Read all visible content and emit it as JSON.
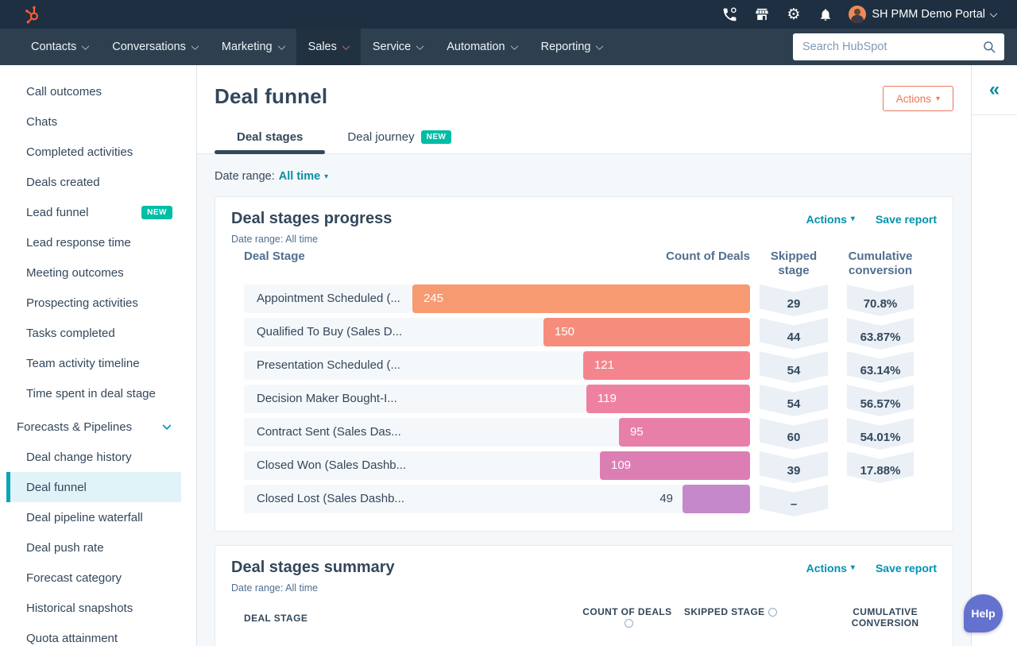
{
  "topbar": {
    "portal": "SH PMM Demo Portal",
    "search_placeholder": "Search HubSpot",
    "nav": [
      {
        "label": "Contacts"
      },
      {
        "label": "Conversations"
      },
      {
        "label": "Marketing"
      },
      {
        "label": "Sales",
        "active": true
      },
      {
        "label": "Service"
      },
      {
        "label": "Automation"
      },
      {
        "label": "Reporting"
      }
    ],
    "icons": [
      "phone-icon",
      "marketplace-icon",
      "settings-icon",
      "notifications-icon"
    ]
  },
  "sidebar": {
    "items": [
      {
        "label": "Call outcomes"
      },
      {
        "label": "Chats"
      },
      {
        "label": "Completed activities"
      },
      {
        "label": "Deals created"
      },
      {
        "label": "Lead funnel",
        "badge": "NEW"
      },
      {
        "label": "Lead response time"
      },
      {
        "label": "Meeting outcomes"
      },
      {
        "label": "Prospecting activities"
      },
      {
        "label": "Tasks completed"
      },
      {
        "label": "Team activity timeline"
      },
      {
        "label": "Time spent in deal stage"
      },
      {
        "label": "Forecasts & Pipelines",
        "section": true
      },
      {
        "label": "Deal change history"
      },
      {
        "label": "Deal funnel",
        "selected": true
      },
      {
        "label": "Deal pipeline waterfall"
      },
      {
        "label": "Deal push rate"
      },
      {
        "label": "Forecast category"
      },
      {
        "label": "Historical snapshots"
      },
      {
        "label": "Quota attainment"
      }
    ]
  },
  "page": {
    "title": "Deal funnel",
    "actions_button": "Actions",
    "tabs": [
      {
        "label": "Deal stages",
        "active": true
      },
      {
        "label": "Deal journey",
        "badge": "NEW"
      }
    ],
    "date_range_label": "Date range:",
    "date_range_value": "All time"
  },
  "progress_card": {
    "title": "Deal stages progress",
    "actions_link": "Actions",
    "save_link": "Save report",
    "date_range": "Date range: All time",
    "columns": {
      "stage": "Deal Stage",
      "count": "Count of Deals",
      "skipped": "Skipped stage",
      "cumulative": "Cumulative conversion"
    }
  },
  "summary_card": {
    "title": "Deal stages summary",
    "actions_link": "Actions",
    "save_link": "Save report",
    "date_range": "Date range: All time",
    "columns": [
      "DEAL STAGE",
      "COUNT OF DEALS",
      "SKIPPED STAGE",
      "CUMULATIVE CONVERSION"
    ]
  },
  "chart_data": {
    "type": "bar",
    "title": "Deal stages progress",
    "orientation": "horizontal-funnel",
    "categories": [
      "Appointment Scheduled (...",
      "Qualified To Buy (Sales D...",
      "Presentation Scheduled (...",
      "Decision Maker Bought-I...",
      "Contract Sent (Sales Das...",
      "Closed Won (Sales Dashb...",
      "Closed Lost (Sales Dashb..."
    ],
    "series": [
      {
        "name": "Count of Deals",
        "values": [
          245,
          150,
          121,
          119,
          95,
          109,
          49
        ]
      },
      {
        "name": "Skipped stage",
        "values": [
          "29",
          "44",
          "54",
          "54",
          "60",
          "39",
          "–"
        ]
      },
      {
        "name": "Cumulative conversion",
        "values": [
          "70.8%",
          "63.87%",
          "63.14%",
          "56.57%",
          "54.01%",
          "17.88%",
          ""
        ]
      }
    ],
    "xmax": 245,
    "bar_colors": [
      "#f89a71",
      "#f68d7c",
      "#f4858e",
      "#ee81a0",
      "#e87fa9",
      "#dc7eb4",
      "#c488cb"
    ],
    "value_label_inside": [
      true,
      true,
      true,
      true,
      true,
      true,
      false
    ]
  },
  "help": {
    "label": "Help"
  },
  "colors": {
    "topbar_bg": "#1e2f41",
    "nav_bg": "#2e4050",
    "nav_active_bg": "#223140",
    "accent_orange": "#ff5c35",
    "coral_button": "#e8765a",
    "teal_link": "#0091ae",
    "teal_badge": "#00bda5",
    "selected_item_bg": "#e0f3f8",
    "selected_item_bar": "#0fa2b8",
    "dark_text": "#33475b",
    "muted_text": "#516f90",
    "page_bg": "#f5f8fa",
    "ribbon_bg": "#eaf0f6",
    "help_bg": "#6472cf"
  }
}
